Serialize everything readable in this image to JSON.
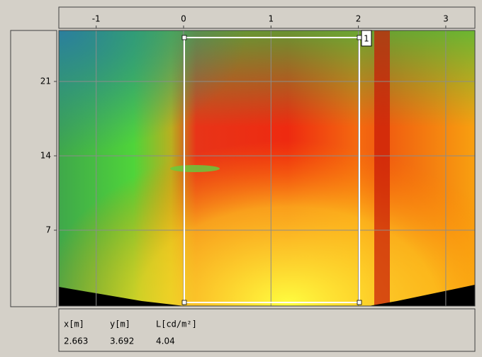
{
  "x_axis": {
    "ticks": [
      -1,
      0,
      1,
      2,
      3
    ]
  },
  "y_axis": {
    "ticks": [
      21,
      14,
      7
    ]
  },
  "roi": {
    "label": "1"
  },
  "readout": {
    "headers": [
      "x[m]",
      "y[m]",
      "L[cd/m²]"
    ],
    "values": [
      "2.663",
      "3.692",
      "4.04"
    ]
  }
}
